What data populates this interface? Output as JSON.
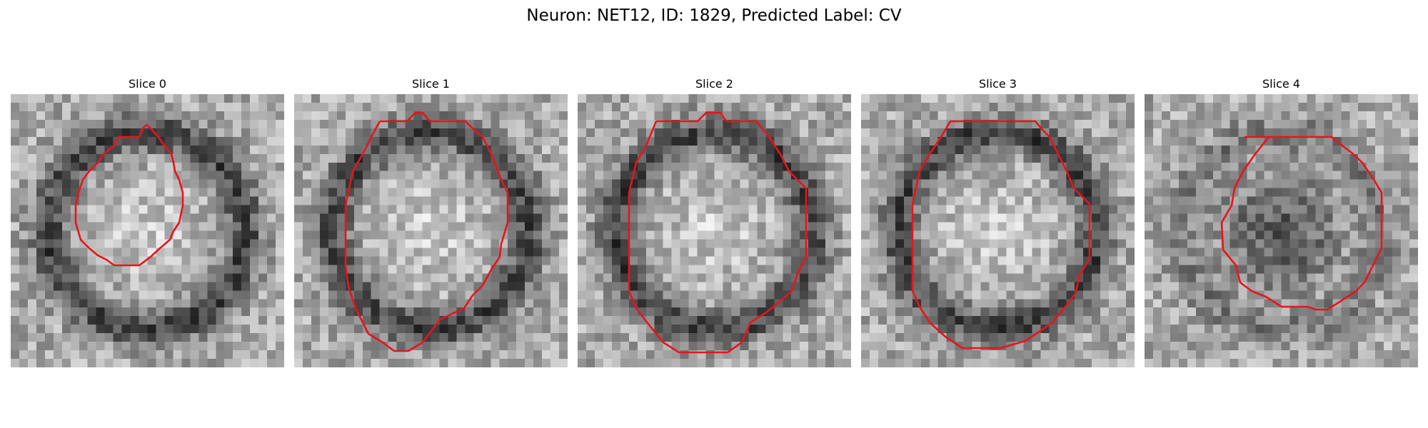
{
  "figure": {
    "title": "Neuron: NET12, ID: 1829, Predicted Label: CV"
  },
  "colors": {
    "contour": "#e8141c",
    "background": "#ffffff"
  },
  "slices": [
    {
      "title": "Slice 0",
      "image_kind": "grayscale-em-patch",
      "center_tone": "bright",
      "ring_tone": "dark"
    },
    {
      "title": "Slice 1",
      "image_kind": "grayscale-em-patch",
      "center_tone": "bright",
      "ring_tone": "dark"
    },
    {
      "title": "Slice 2",
      "image_kind": "grayscale-em-patch",
      "center_tone": "bright",
      "ring_tone": "dark"
    },
    {
      "title": "Slice 3",
      "image_kind": "grayscale-em-patch",
      "center_tone": "bright",
      "ring_tone": "dark"
    },
    {
      "title": "Slice 4",
      "image_kind": "grayscale-em-patch",
      "center_tone": "dark",
      "ring_tone": "medium"
    }
  ]
}
